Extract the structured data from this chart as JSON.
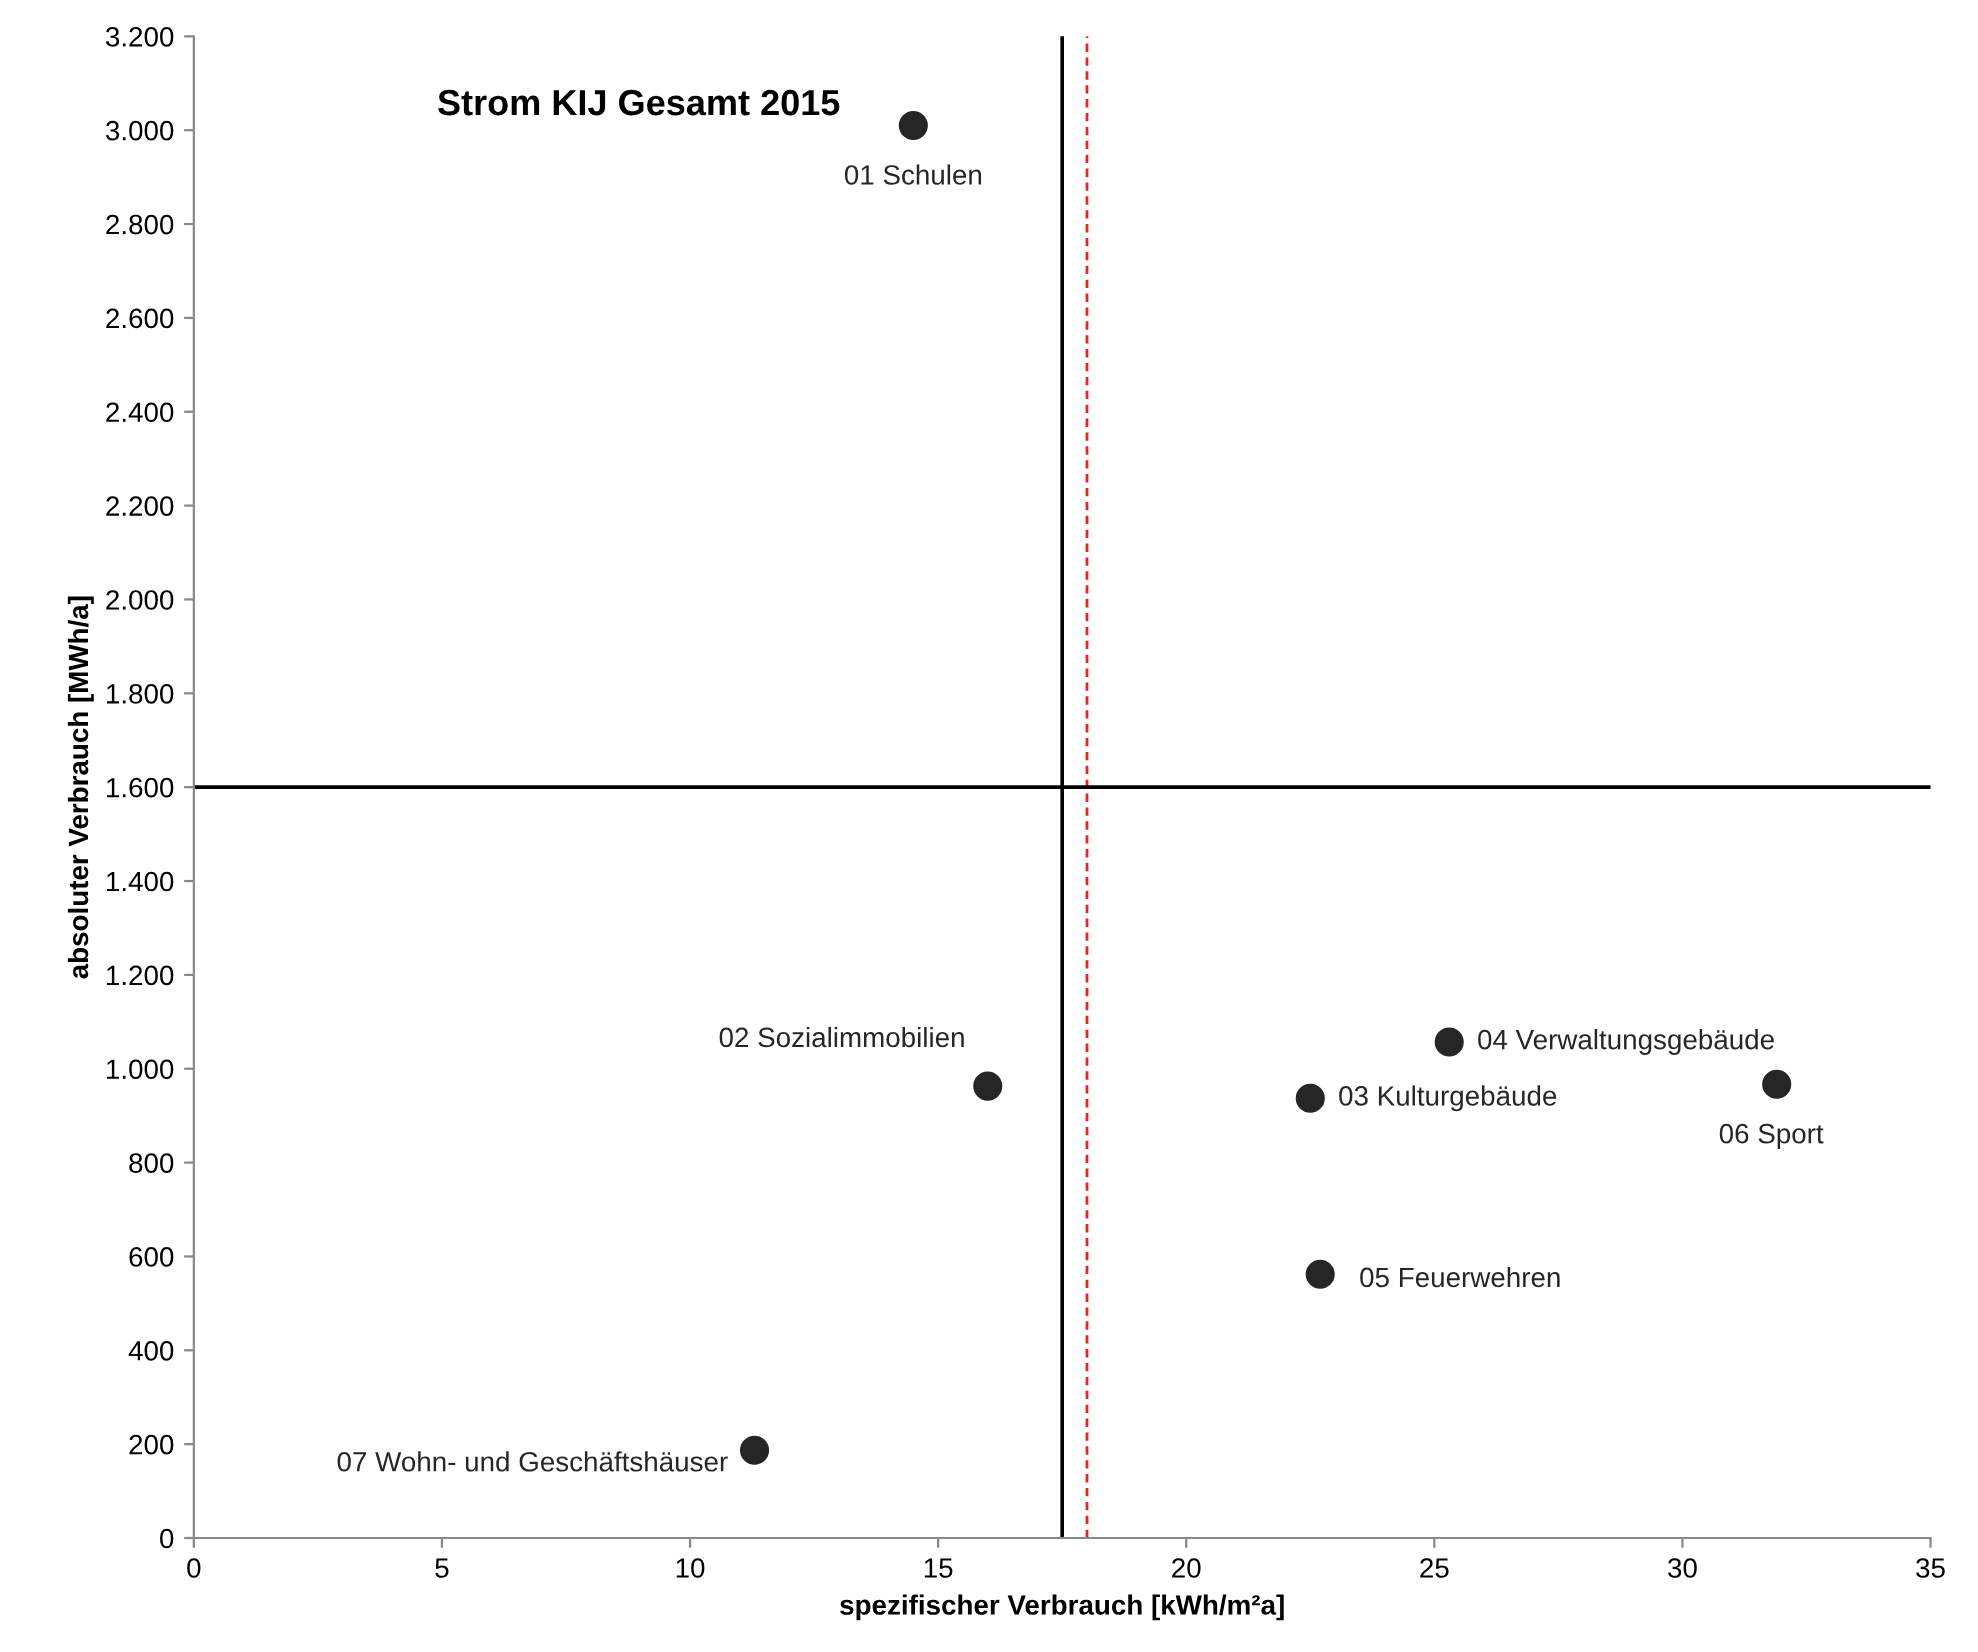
{
  "chart_data": {
    "type": "scatter",
    "title": "Strom KIJ Gesamt 2015",
    "xlabel": "spezifischer Verbrauch [kWh/m²a]",
    "ylabel": "absoluter Verbrauch [MWh/a]",
    "series": [
      {
        "color": "#262626",
        "x": [
          14.5,
          16.0,
          22.5,
          25.3,
          22.7,
          31.9,
          11.3
        ],
        "values": [
          3010,
          963,
          937,
          1057,
          562,
          967,
          187
        ]
      }
    ],
    "annotations": [
      {
        "text": "01 Schulen",
        "x": 14.5,
        "y": 3010
      },
      {
        "text": "02 Sozialimmobilien",
        "x": 16.0,
        "y": 963
      },
      {
        "text": "03 Kulturgebäude",
        "x": 22.5,
        "y": 937
      },
      {
        "text": "04 Verwaltungsgebäude",
        "x": 25.3,
        "y": 1057
      },
      {
        "text": "05 Feuerwehren",
        "x": 22.7,
        "y": 562
      },
      {
        "text": "06 Sport",
        "x": 31.9,
        "y": 967
      },
      {
        "text": "07 Wohn- und Geschäftshäuser",
        "x": 11.3,
        "y": 187
      }
    ],
    "ref_lines": [
      {
        "axis": "x",
        "value": 17.5,
        "color": "#000000",
        "line_style": "solid"
      },
      {
        "axis": "x",
        "value": 18.0,
        "color": "#e8251f",
        "line_style": "dashed"
      },
      {
        "axis": "y",
        "value": 1600,
        "color": "#000000",
        "line_style": "solid"
      }
    ],
    "xlim": [
      0,
      35
    ],
    "xticks": [
      0,
      5,
      10,
      15,
      20,
      25,
      30,
      35
    ],
    "ylim": [
      0,
      3200
    ],
    "yticks": [
      0,
      200,
      400,
      600,
      800,
      {
        "value": 1000,
        "label": "1.000"
      },
      {
        "value": 1200,
        "label": "1.200"
      },
      {
        "value": 1400,
        "label": "1.400"
      },
      {
        "value": 1600,
        "label": "1.600"
      },
      {
        "value": 1800,
        "label": "1.800"
      },
      {
        "value": 2000,
        "label": "2.000"
      },
      {
        "value": 2200,
        "label": "2.200"
      },
      {
        "value": 2400,
        "label": "2.400"
      },
      {
        "value": 2600,
        "label": "2.600"
      },
      {
        "value": 2800,
        "label": "2.800"
      },
      {
        "value": 3000,
        "label": "3.000"
      },
      {
        "value": 3200,
        "label": "3.200"
      }
    ],
    "grid": false,
    "marker": "circle"
  }
}
